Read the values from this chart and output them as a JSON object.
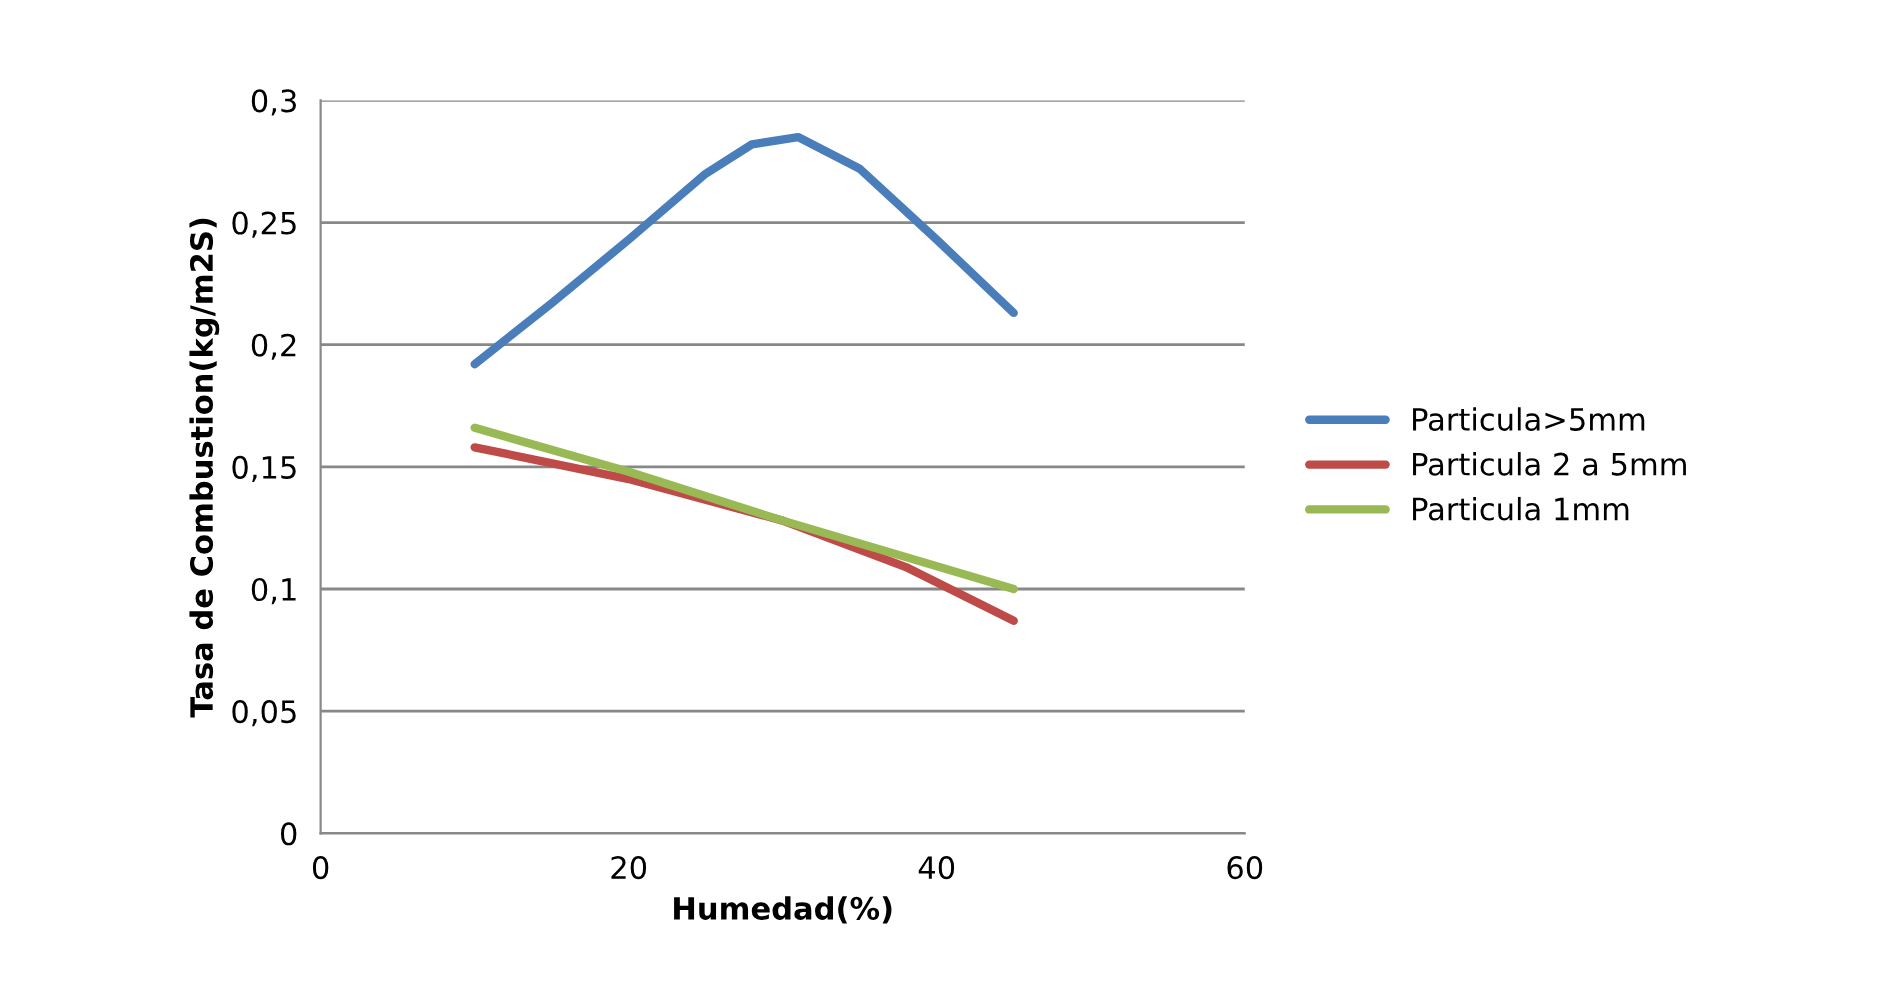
{
  "chart_data": {
    "type": "line",
    "xlabel": "Humedad(%)",
    "ylabel": "Tasa de Combustion(kg/m2S)",
    "series": [
      {
        "name": "Particula>5mm",
        "color": "#4a7ebb",
        "x": [
          10,
          15,
          20,
          25,
          28,
          31,
          35,
          40,
          45
        ],
        "values": [
          0.192,
          0.217,
          0.243,
          0.27,
          0.282,
          0.285,
          0.272,
          0.243,
          0.213
        ]
      },
      {
        "name": "Particula 2 a 5mm",
        "color": "#be4b48",
        "x": [
          10,
          20,
          30,
          38,
          45
        ],
        "values": [
          0.158,
          0.145,
          0.128,
          0.109,
          0.087
        ]
      },
      {
        "name": "Particula 1mm",
        "color": "#98b954",
        "x": [
          10,
          20,
          30,
          45
        ],
        "values": [
          0.166,
          0.148,
          0.128,
          0.1
        ]
      }
    ],
    "xlim": [
      0,
      60
    ],
    "xticks": [
      0,
      20,
      40,
      60
    ],
    "ylim": [
      0,
      0.3
    ],
    "yticks": [
      0,
      {
        "value": 0.05,
        "label": "0,05"
      },
      {
        "value": 0.1,
        "label": "0,1"
      },
      {
        "value": 0.15,
        "label": "0,15"
      },
      {
        "value": 0.2,
        "label": "0,2"
      },
      {
        "value": 0.25,
        "label": "0,25"
      },
      {
        "value": 0.3,
        "label": "0,3"
      }
    ],
    "grid": "y",
    "legend": "right",
    "line_style": "solid",
    "marker": "none"
  }
}
